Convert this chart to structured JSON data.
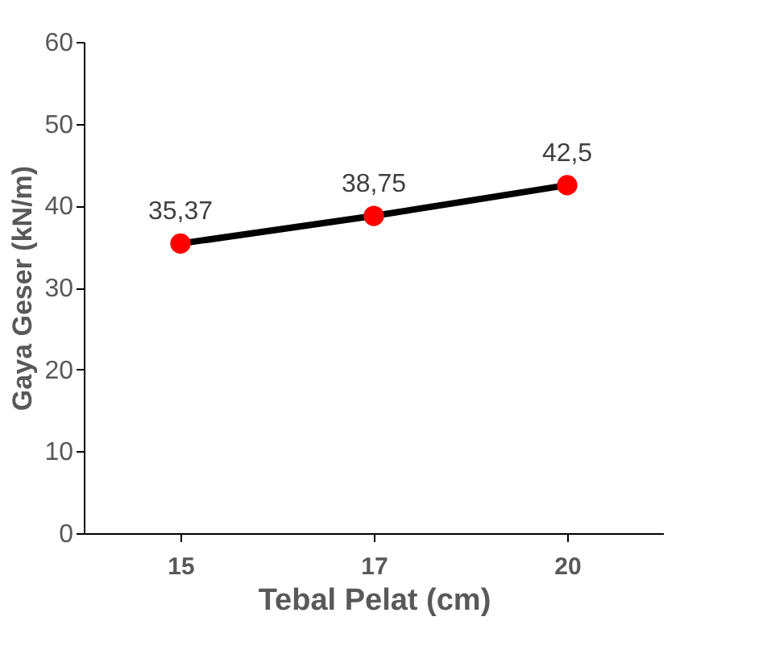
{
  "chart_data": {
    "type": "line",
    "xlabel": "Tebal Pelat (cm)",
    "ylabel": "Gaya Geser (kN/m)",
    "categories": [
      "15",
      "17",
      "20"
    ],
    "series": [
      {
        "color": "#000000",
        "colors": [
          "#ff0000",
          "#ff0000",
          "#ff0000"
        ],
        "values": [
          35.37,
          38.75,
          42.5
        ],
        "value_labels": [
          "35,37",
          "38,75",
          "42,5"
        ]
      }
    ],
    "ylim": [
      0,
      60
    ],
    "yticks": [
      0,
      10,
      20,
      30,
      40,
      50,
      60
    ],
    "grid": false,
    "marker": "circle",
    "line_style": "solid"
  }
}
